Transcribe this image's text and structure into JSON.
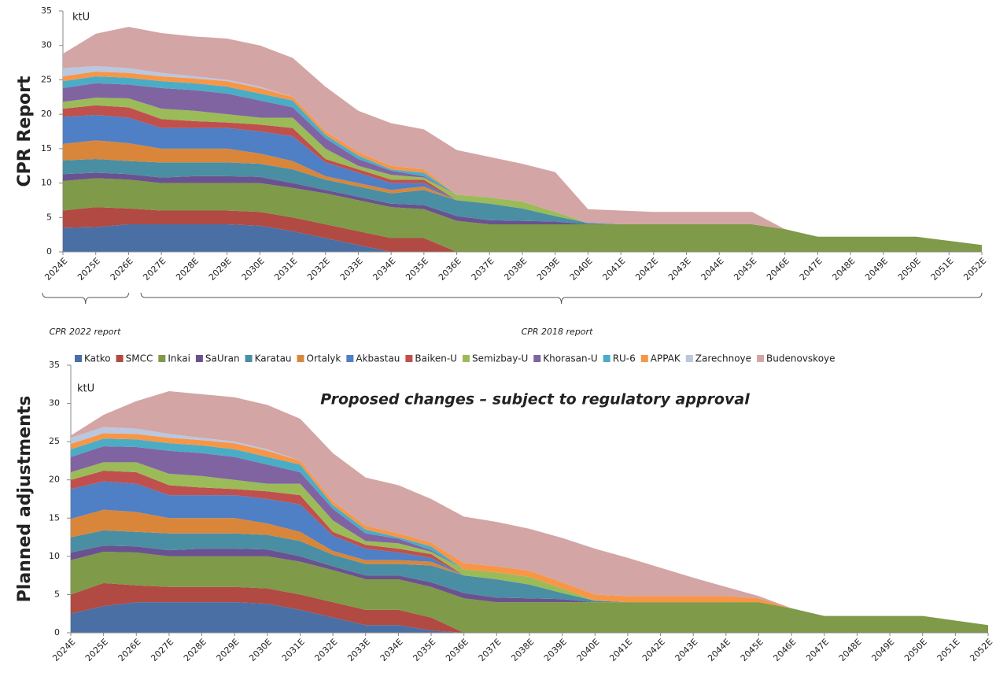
{
  "chart_data": [
    {
      "type": "area",
      "stacked": true,
      "y_label": "CPR Report",
      "unit": "ktU",
      "annotations": [
        "CPR 2022 report",
        "CPR 2018 report"
      ],
      "categories": [
        "2024E",
        "2025E",
        "2026E",
        "2027E",
        "2028E",
        "2029E",
        "2030E",
        "2031E",
        "2032E",
        "2033E",
        "2034E",
        "2035E",
        "2036E",
        "2037E",
        "2038E",
        "2039E",
        "2040E",
        "2041E",
        "2042E",
        "2043E",
        "2044E",
        "2045E",
        "2046E",
        "2047E",
        "2048E",
        "2049E",
        "2050E",
        "2051E",
        "2052E"
      ],
      "ylim": [
        0,
        35
      ],
      "yticks": [
        0,
        5,
        10,
        15,
        20,
        25,
        30,
        35
      ],
      "series": [
        {
          "name": "Katko",
          "color": "#4a6fa5",
          "values": [
            3.5,
            3.6,
            4,
            4,
            4,
            4,
            3.8,
            3,
            2,
            1,
            0,
            0,
            0,
            0,
            0,
            0,
            0,
            0,
            0,
            0,
            0,
            0,
            0,
            0,
            0,
            0,
            0,
            0,
            0
          ]
        },
        {
          "name": "SMCC",
          "color": "#b04a42",
          "values": [
            2.5,
            2.9,
            2.3,
            2,
            2,
            2,
            2,
            2,
            2,
            2,
            2,
            2,
            0,
            0,
            0,
            0,
            0,
            0,
            0,
            0,
            0,
            0,
            0,
            0,
            0,
            0,
            0,
            0,
            0
          ]
        },
        {
          "name": "Inkai",
          "color": "#7f9a48",
          "values": [
            4.3,
            4.2,
            4.2,
            4,
            4,
            4,
            4.2,
            4.3,
            4.5,
            4.5,
            4.5,
            4.2,
            4.5,
            4,
            4,
            4,
            4,
            4,
            4,
            4,
            4,
            4,
            3.3,
            2.2,
            2.2,
            2.2,
            2.2,
            1.6,
            1.0
          ]
        },
        {
          "name": "SaUran",
          "color": "#6a5290",
          "values": [
            1,
            0.8,
            0.8,
            0.8,
            1,
            1,
            0.9,
            0.7,
            0.5,
            0.5,
            0.5,
            0.6,
            0.7,
            0.6,
            0.5,
            0.4,
            0,
            0,
            0,
            0,
            0,
            0,
            0,
            0,
            0,
            0,
            0,
            0,
            0
          ]
        },
        {
          "name": "Karatau",
          "color": "#4a8ea3",
          "values": [
            2,
            2,
            1.9,
            2.2,
            2,
            2,
            1.9,
            2,
            1.5,
            1.5,
            1.5,
            2.2,
            2.3,
            2.4,
            1.8,
            0.8,
            0.2,
            0,
            0,
            0,
            0,
            0,
            0,
            0,
            0,
            0,
            0,
            0,
            0
          ]
        },
        {
          "name": "Ortalyk",
          "color": "#d9863a",
          "values": [
            2.4,
            2.7,
            2.6,
            2,
            2,
            2,
            1.5,
            1.2,
            0.5,
            0.5,
            0.5,
            0.5,
            0,
            0,
            0,
            0,
            0,
            0,
            0,
            0,
            0,
            0,
            0,
            0,
            0,
            0,
            0,
            0,
            0
          ]
        },
        {
          "name": "Akbastau",
          "color": "#4f7fc4",
          "values": [
            3.9,
            3.7,
            3.7,
            3,
            3,
            3,
            3.2,
            3.6,
            2,
            1.5,
            1,
            0.5,
            0,
            0,
            0,
            0,
            0,
            0,
            0,
            0,
            0,
            0,
            0,
            0,
            0,
            0,
            0,
            0,
            0
          ]
        },
        {
          "name": "Baiken-U",
          "color": "#c0504d",
          "values": [
            1.2,
            1.4,
            1.5,
            1.3,
            1,
            0.8,
            1,
            1.2,
            0.5,
            0.5,
            0.5,
            0.5,
            0,
            0,
            0,
            0,
            0,
            0,
            0,
            0,
            0,
            0,
            0,
            0,
            0,
            0,
            0,
            0,
            0
          ]
        },
        {
          "name": "Semizbay-U",
          "color": "#9bbb59",
          "values": [
            1,
            1.1,
            1.3,
            1.5,
            1.5,
            1.2,
            1,
            1.5,
            1.5,
            0.5,
            0.7,
            0.3,
            0.8,
            0.9,
            1,
            0.6,
            0,
            0,
            0,
            0,
            0,
            0,
            0,
            0,
            0,
            0,
            0,
            0,
            0
          ]
        },
        {
          "name": "Khorasan-U",
          "color": "#8064a2",
          "values": [
            2,
            2.1,
            2,
            3,
            3,
            3,
            2.5,
            1.5,
            1.5,
            1,
            0.6,
            0.2,
            0,
            0,
            0,
            0,
            0,
            0,
            0,
            0,
            0,
            0,
            0,
            0,
            0,
            0,
            0,
            0,
            0
          ]
        },
        {
          "name": "RU-6",
          "color": "#4bacc6",
          "values": [
            1,
            1,
            1,
            1,
            1,
            1,
            1,
            1,
            0.5,
            0.5,
            0.2,
            0.5,
            0,
            0,
            0,
            0,
            0,
            0,
            0,
            0,
            0,
            0,
            0,
            0,
            0,
            0,
            0,
            0,
            0
          ]
        },
        {
          "name": "APPAK",
          "color": "#f79646",
          "values": [
            0.7,
            0.7,
            0.7,
            0.7,
            0.7,
            0.8,
            0.8,
            0.5,
            0.5,
            0.5,
            0.5,
            0.5,
            0,
            0,
            0,
            0,
            0,
            0,
            0,
            0,
            0,
            0,
            0,
            0,
            0,
            0,
            0,
            0,
            0
          ]
        },
        {
          "name": "Zarechnoye",
          "color": "#b9c7e0",
          "values": [
            1.2,
            0.8,
            0.7,
            0.5,
            0.3,
            0.2,
            0.2,
            0,
            0,
            0,
            0,
            0,
            0,
            0,
            0,
            0,
            0,
            0,
            0,
            0,
            0,
            0,
            0,
            0,
            0,
            0,
            0,
            0,
            0
          ]
        },
        {
          "name": "Budenovskoye",
          "color": "#d4a5a5",
          "values": [
            2.1,
            4.7,
            6,
            5.8,
            5.8,
            6,
            6,
            5.7,
            6.5,
            6,
            6.2,
            5.8,
            6.5,
            5.9,
            5.5,
            5.8,
            2,
            2,
            1.8,
            1.8,
            1.8,
            1.8,
            0,
            0,
            0,
            0,
            0,
            0,
            0
          ]
        }
      ]
    },
    {
      "type": "area",
      "stacked": true,
      "y_label": "Planned adjustments",
      "unit": "ktU",
      "annotations": [
        "Proposed changes – subject to regulatory approval"
      ],
      "categories": [
        "2024E",
        "2025E",
        "2026E",
        "2027E",
        "2028E",
        "2029E",
        "2030E",
        "2031E",
        "2032E",
        "2033E",
        "2034E",
        "2035E",
        "2036E",
        "2037E",
        "2038E",
        "2039E",
        "2040E",
        "2041E",
        "2042E",
        "2043E",
        "2044E",
        "2045E",
        "2046E",
        "2047E",
        "2048E",
        "2049E",
        "2050E",
        "2051E",
        "2052E"
      ],
      "ylim": [
        0,
        35
      ],
      "yticks": [
        0,
        5,
        10,
        15,
        20,
        25,
        30,
        35
      ],
      "legend": "top",
      "series": [
        {
          "name": "Katko",
          "color": "#4a6fa5",
          "values": [
            2.5,
            3.5,
            4,
            4,
            4,
            4,
            3.8,
            3,
            2,
            1,
            1,
            0.3,
            0,
            0,
            0,
            0,
            0,
            0,
            0,
            0,
            0,
            0,
            0,
            0,
            0,
            0,
            0,
            0,
            0
          ]
        },
        {
          "name": "SMCC",
          "color": "#b04a42",
          "values": [
            2.5,
            3,
            2.2,
            2,
            2,
            2,
            2,
            2,
            2,
            2,
            2,
            1.7,
            0,
            0,
            0,
            0,
            0,
            0,
            0,
            0,
            0,
            0,
            0,
            0,
            0,
            0,
            0,
            0,
            0
          ]
        },
        {
          "name": "Inkai",
          "color": "#7f9a48",
          "values": [
            4.5,
            4.1,
            4.3,
            4,
            4,
            4,
            4.2,
            4.3,
            4.2,
            4,
            4,
            4,
            4.5,
            4,
            4,
            4,
            4,
            4,
            4,
            4,
            4,
            4,
            3.2,
            2.2,
            2.2,
            2.2,
            2.2,
            1.6,
            1.0
          ]
        },
        {
          "name": "SaUran",
          "color": "#6a5290",
          "values": [
            1,
            0.8,
            0.8,
            0.8,
            1,
            1,
            0.9,
            0.7,
            0.5,
            0.5,
            0.5,
            0.6,
            0.7,
            0.6,
            0.5,
            0.4,
            0,
            0,
            0,
            0,
            0,
            0,
            0,
            0,
            0,
            0,
            0,
            0,
            0
          ]
        },
        {
          "name": "Karatau",
          "color": "#4a8ea3",
          "values": [
            2,
            2,
            1.9,
            2.2,
            2,
            2,
            1.9,
            2,
            1.5,
            1.5,
            1.5,
            2.2,
            2.3,
            2.4,
            1.8,
            0.8,
            0.2,
            0,
            0,
            0,
            0,
            0,
            0,
            0,
            0,
            0,
            0,
            0,
            0
          ]
        },
        {
          "name": "Ortalyk",
          "color": "#d9863a",
          "values": [
            2.4,
            2.7,
            2.6,
            2,
            2,
            2,
            1.5,
            1.2,
            0.5,
            0.5,
            0.5,
            0.5,
            0,
            0,
            0,
            0,
            0,
            0,
            0,
            0,
            0,
            0,
            0,
            0,
            0,
            0,
            0,
            0,
            0
          ]
        },
        {
          "name": "Akbastau",
          "color": "#4f7fc4",
          "values": [
            3.9,
            3.7,
            3.7,
            3,
            3,
            3,
            3.2,
            3.6,
            2,
            1.5,
            1,
            0.5,
            0,
            0,
            0,
            0,
            0,
            0,
            0,
            0,
            0,
            0,
            0,
            0,
            0,
            0,
            0,
            0,
            0
          ]
        },
        {
          "name": "Baiken-U",
          "color": "#c0504d",
          "values": [
            1.2,
            1.4,
            1.5,
            1.3,
            1,
            0.8,
            1,
            1.2,
            0.5,
            0.5,
            0.5,
            0.5,
            0,
            0,
            0,
            0,
            0,
            0,
            0,
            0,
            0,
            0,
            0,
            0,
            0,
            0,
            0,
            0,
            0
          ]
        },
        {
          "name": "Semizbay-U",
          "color": "#9bbb59",
          "values": [
            1,
            1.1,
            1.3,
            1.5,
            1.5,
            1.2,
            1,
            1.5,
            1.5,
            0.5,
            0.7,
            0.3,
            0.8,
            0.9,
            1,
            0.6,
            0,
            0,
            0,
            0,
            0,
            0,
            0,
            0,
            0,
            0,
            0,
            0,
            0
          ]
        },
        {
          "name": "Khorasan-U",
          "color": "#8064a2",
          "values": [
            2,
            2.1,
            2,
            3,
            3,
            3,
            2.5,
            1.5,
            1.5,
            1,
            0.6,
            0.2,
            0,
            0,
            0,
            0,
            0,
            0,
            0,
            0,
            0,
            0,
            0,
            0,
            0,
            0,
            0,
            0,
            0
          ]
        },
        {
          "name": "RU-6",
          "color": "#4bacc6",
          "values": [
            1,
            1,
            1,
            1,
            1,
            1,
            1,
            1,
            0.5,
            0.5,
            0.2,
            0.5,
            0,
            0,
            0,
            0,
            0,
            0,
            0,
            0,
            0,
            0,
            0,
            0,
            0,
            0,
            0,
            0,
            0
          ]
        },
        {
          "name": "APPAK",
          "color": "#f79646",
          "values": [
            0.7,
            0.7,
            0.7,
            0.7,
            0.7,
            0.8,
            0.8,
            0.5,
            0.5,
            0.5,
            0.5,
            0.5,
            0.8,
            0.8,
            0.8,
            0.8,
            0.8,
            0.8,
            0.8,
            0.8,
            0.8,
            0.5,
            0,
            0,
            0,
            0,
            0,
            0,
            0
          ]
        },
        {
          "name": "Zarechnoye",
          "color": "#b9c7e0",
          "values": [
            0.8,
            0.8,
            0.7,
            0.5,
            0.3,
            0.2,
            0.2,
            0,
            0,
            0,
            0,
            0,
            0,
            0,
            0,
            0,
            0,
            0,
            0,
            0,
            0,
            0,
            0,
            0,
            0,
            0,
            0,
            0,
            0
          ]
        },
        {
          "name": "Budenovskoye",
          "color": "#d4a5a5",
          "values": [
            0.3,
            1.6,
            3.6,
            5.6,
            5.7,
            5.8,
            5.8,
            5.5,
            6.3,
            6.3,
            6.3,
            5.7,
            6.1,
            5.8,
            5.5,
            5.8,
            6,
            5,
            3.7,
            2.4,
            1.2,
            0.3,
            0,
            0,
            0,
            0,
            0,
            0,
            0
          ]
        }
      ]
    }
  ]
}
